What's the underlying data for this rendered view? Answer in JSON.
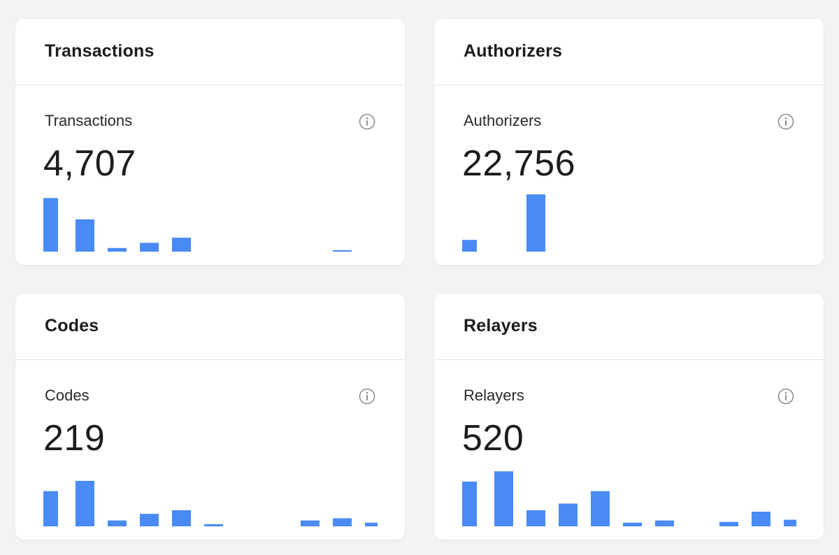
{
  "accent_color": "#4a8af4",
  "cards": [
    {
      "title": "Transactions",
      "metric_label": "Transactions",
      "value": "4,707",
      "info_icon": "info-icon",
      "chart_data": {
        "type": "bar",
        "values": [
          73,
          44,
          5,
          12,
          19,
          0,
          0,
          0,
          0,
          2,
          0
        ],
        "ylim": [
          0,
          80
        ]
      }
    },
    {
      "title": "Authorizers",
      "metric_label": "Authorizers",
      "value": "22,756",
      "info_icon": "info-icon",
      "chart_data": {
        "type": "bar",
        "values": [
          16,
          0,
          78,
          0,
          0,
          0,
          0,
          0,
          0,
          0,
          0
        ],
        "ylim": [
          0,
          80
        ]
      }
    },
    {
      "title": "Codes",
      "metric_label": "Codes",
      "value": "219",
      "info_icon": "info-icon",
      "chart_data": {
        "type": "bar",
        "values": [
          48,
          62,
          8,
          17,
          22,
          3,
          0,
          0,
          8,
          11,
          5
        ],
        "ylim": [
          0,
          80
        ]
      }
    },
    {
      "title": "Relayers",
      "metric_label": "Relayers",
      "value": "520",
      "info_icon": "info-icon",
      "chart_data": {
        "type": "bar",
        "values": [
          61,
          75,
          22,
          31,
          48,
          5,
          8,
          0,
          6,
          20,
          9
        ],
        "ylim": [
          0,
          80
        ]
      }
    }
  ]
}
